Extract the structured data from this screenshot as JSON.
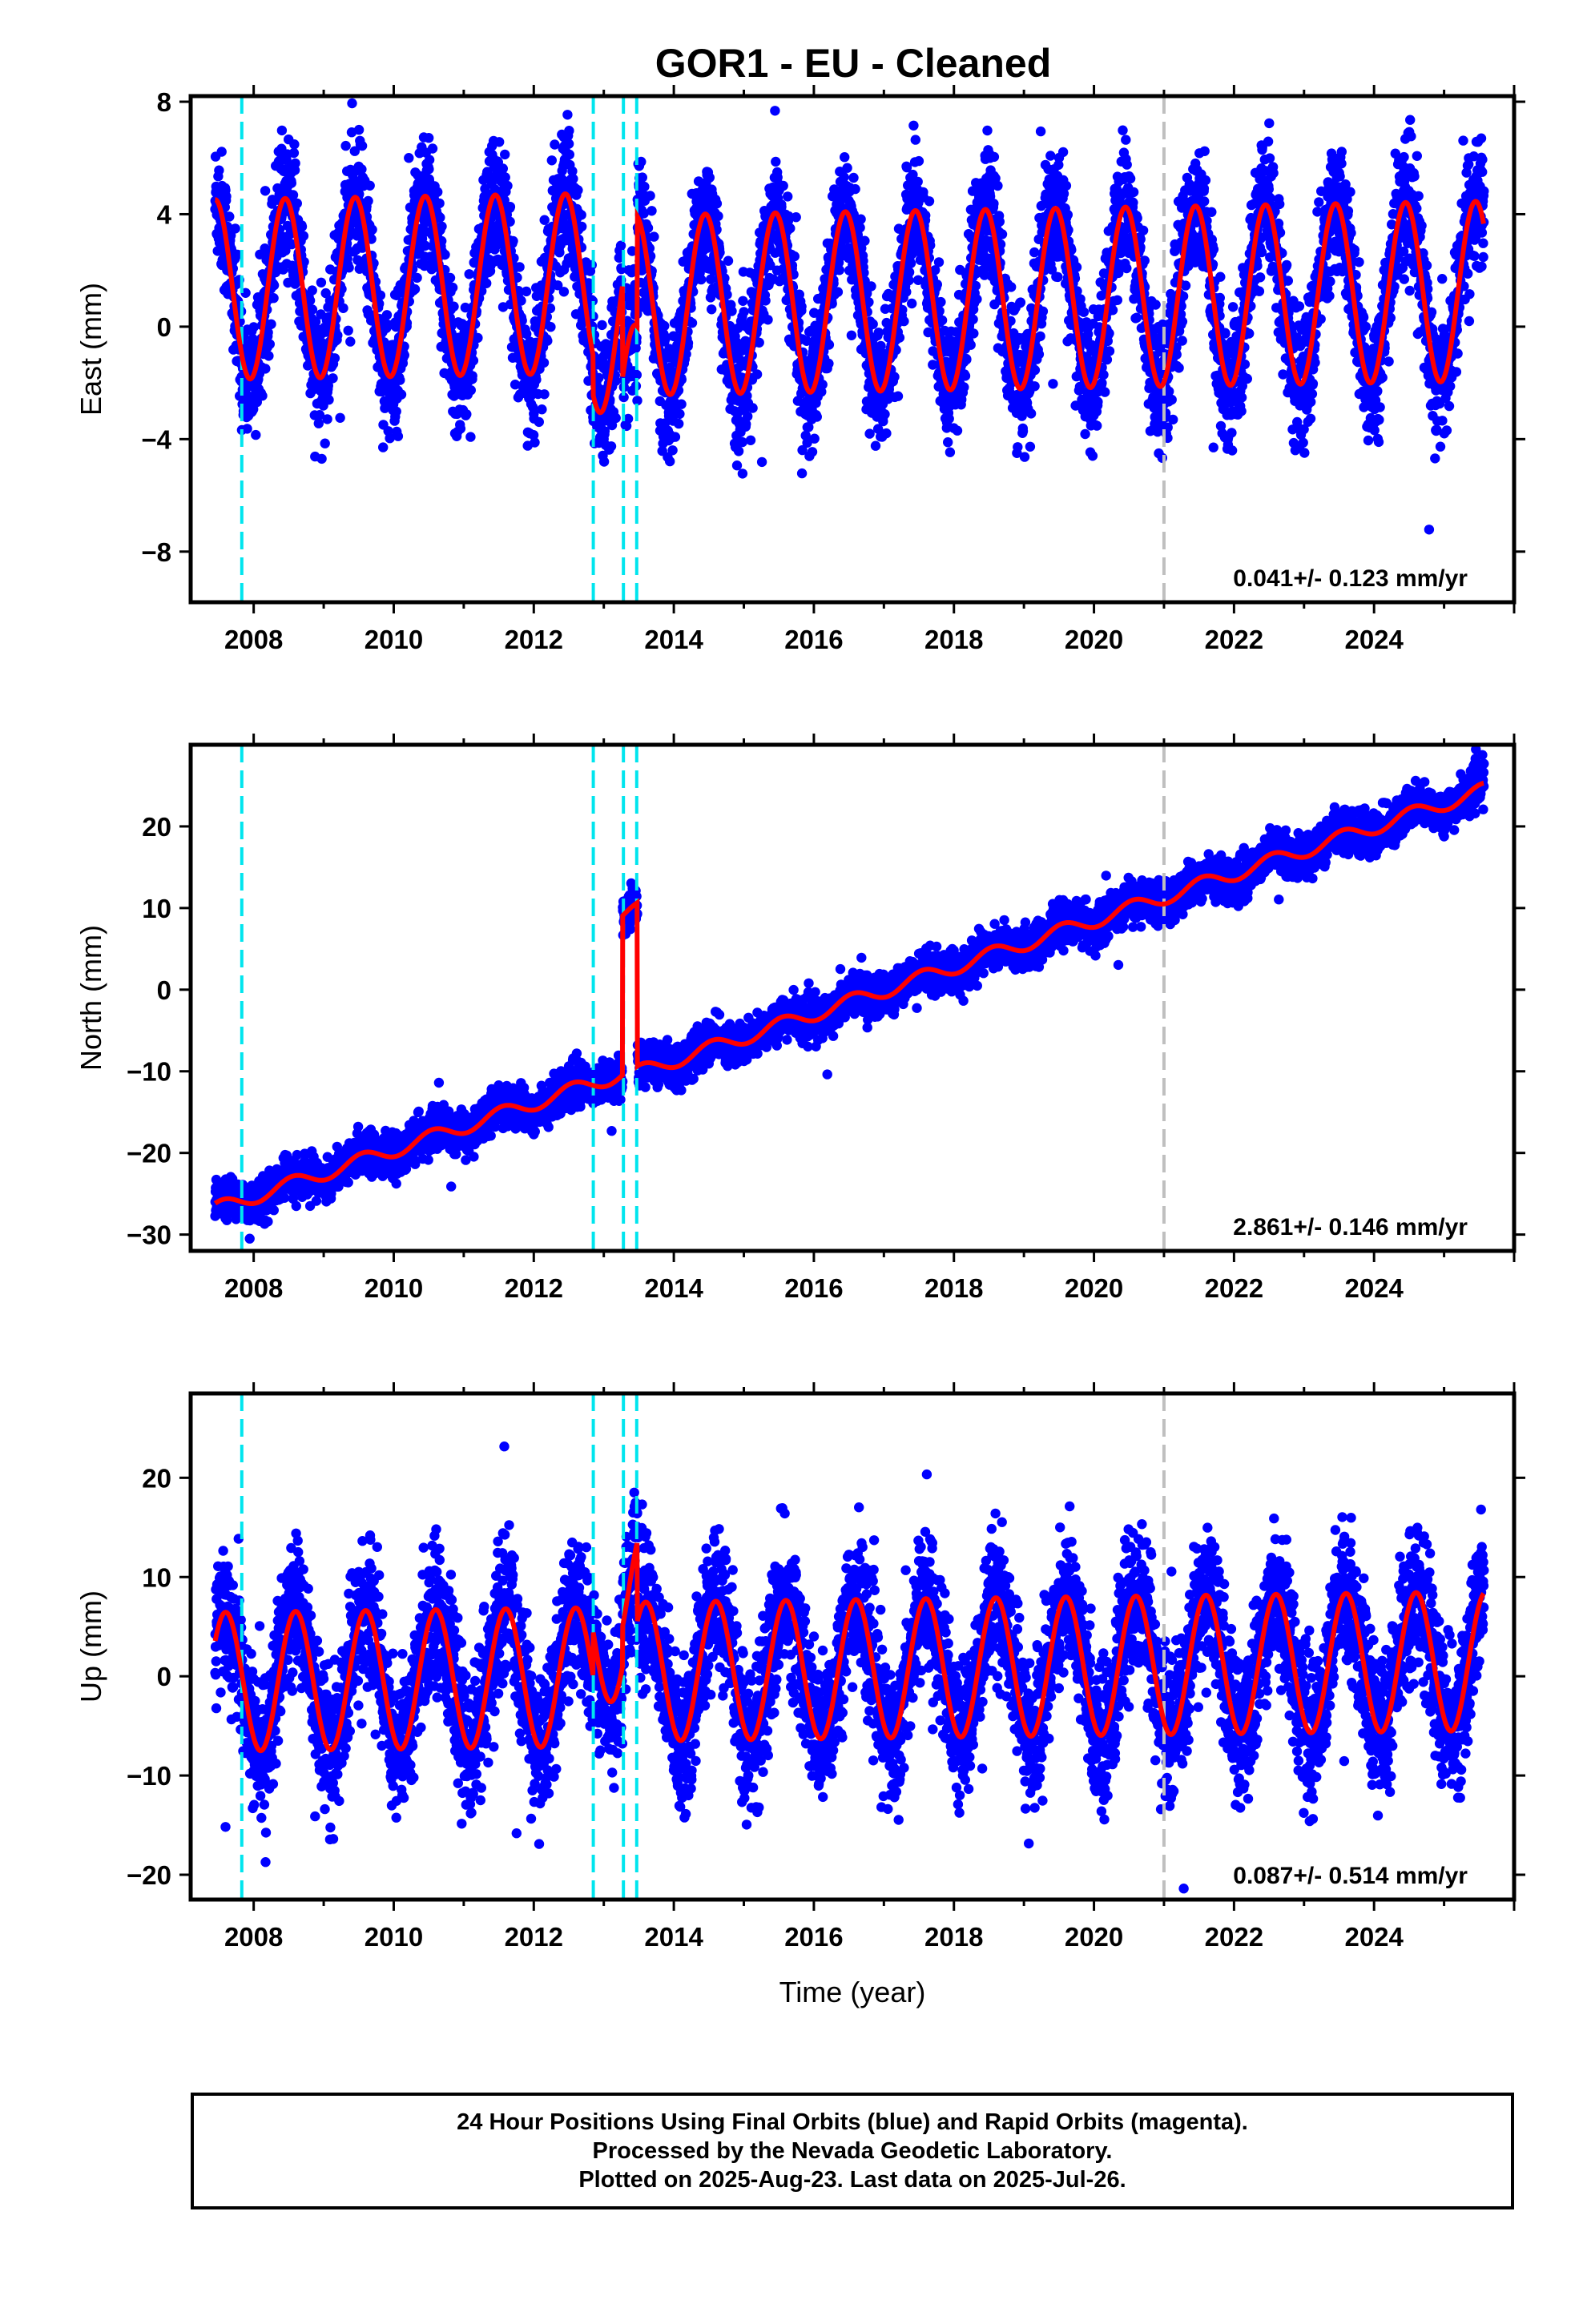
{
  "chart_data": [
    {
      "type": "scatter",
      "title": "GOR1  - EU - Cleaned",
      "ylabel": "East (mm)",
      "xlabel": "",
      "xlim": [
        2007.1,
        2026.0
      ],
      "ylim": [
        -9.8,
        8.2
      ],
      "yticks": [
        -8,
        -4,
        0,
        4,
        8
      ],
      "xticks": [
        2008,
        2010,
        2012,
        2014,
        2016,
        2018,
        2020,
        2022,
        2024
      ],
      "rate_label": "0.041+/- 0.123 mm/yr",
      "data_start": 2007.45,
      "data_end": 2025.57,
      "trend": {
        "intercept_at_2007": 1.3,
        "rate": 0.041
      },
      "seasonal": {
        "amplitude": 3.2,
        "peak_phase_year_fraction": 0.45,
        "noise_std": 1.1
      },
      "offsets": [
        {
          "start": 2007.45,
          "end": 2012.85,
          "shift": 0.0
        },
        {
          "start": 2012.85,
          "end": 2013.27,
          "shift": -1.4
        },
        {
          "start": 2013.27,
          "end": 2013.48,
          "shift": -4.7
        },
        {
          "start": 2013.48,
          "end": 2026.0,
          "shift": -0.8
        }
      ],
      "equipment_breaks": [
        2007.83,
        2012.85,
        2013.28,
        2013.47
      ],
      "other_breaks": [
        2021.0
      ],
      "series": [
        {
          "name": "Final Orbits",
          "color": "#0000ff"
        },
        {
          "name": "Model",
          "color": "#ff0000"
        }
      ]
    },
    {
      "type": "scatter",
      "ylabel": "North (mm)",
      "xlabel": "",
      "xlim": [
        2007.1,
        2026.0
      ],
      "ylim": [
        -32,
        30
      ],
      "yticks": [
        -30,
        -20,
        -10,
        0,
        10,
        20
      ],
      "xticks": [
        2008,
        2010,
        2012,
        2014,
        2016,
        2018,
        2020,
        2022,
        2024
      ],
      "rate_label": "2.861+/- 0.146 mm/yr",
      "data_start": 2007.45,
      "data_end": 2025.57,
      "trend": {
        "intercept_at_2007": -28.2,
        "rate": 2.861
      },
      "seasonal": {
        "amplitude": 0.9,
        "peak_phase_year_fraction": 0.55,
        "noise_std": 1.2
      },
      "offsets": [
        {
          "start": 2007.45,
          "end": 2013.27,
          "shift": 0.0
        },
        {
          "start": 2013.27,
          "end": 2013.48,
          "shift": 19.5
        },
        {
          "start": 2013.48,
          "end": 2026.0,
          "shift": -0.5
        }
      ],
      "equipment_breaks": [
        2007.83,
        2012.85,
        2013.28,
        2013.47
      ],
      "other_breaks": [
        2021.0
      ],
      "series": [
        {
          "name": "Final Orbits",
          "color": "#0000ff"
        },
        {
          "name": "Model",
          "color": "#ff0000"
        }
      ]
    },
    {
      "type": "scatter",
      "ylabel": "Up (mm)",
      "xlabel": "Time (year)",
      "xlim": [
        2007.1,
        2026.0
      ],
      "ylim": [
        -22.5,
        28.5
      ],
      "yticks": [
        -20,
        -10,
        0,
        10,
        20
      ],
      "xticks": [
        2008,
        2010,
        2012,
        2014,
        2016,
        2018,
        2020,
        2022,
        2024
      ],
      "rate_label": "0.087+/- 0.514 mm/yr",
      "data_start": 2007.45,
      "data_end": 2025.57,
      "trend": {
        "intercept_at_2007": -0.6,
        "rate": 0.087
      },
      "seasonal": {
        "amplitude": 7.0,
        "peak_phase_year_fraction": 0.6,
        "noise_std": 3.5
      },
      "offsets": [
        {
          "start": 2007.45,
          "end": 2012.85,
          "shift": 0.0
        },
        {
          "start": 2012.85,
          "end": 2013.27,
          "shift": 4.5
        },
        {
          "start": 2013.27,
          "end": 2013.48,
          "shift": 8.5
        },
        {
          "start": 2013.48,
          "end": 2026.0,
          "shift": 0.5
        }
      ],
      "equipment_breaks": [
        2007.83,
        2012.85,
        2013.28,
        2013.47
      ],
      "other_breaks": [
        2021.0
      ],
      "series": [
        {
          "name": "Final Orbits",
          "color": "#0000ff"
        },
        {
          "name": "Model",
          "color": "#ff0000"
        }
      ]
    }
  ],
  "colors": {
    "points": "#0000ff",
    "model": "#ff0000",
    "equipment_break": "#00e5ee",
    "other_break": "#bfbfbf"
  },
  "footer": {
    "line1": "24 Hour Positions Using Final Orbits (blue) and Rapid Orbits (magenta).",
    "line2": "Processed by the Nevada Geodetic Laboratory.",
    "line3": "Plotted on 2025-Aug-23. Last data on 2025-Jul-26."
  }
}
